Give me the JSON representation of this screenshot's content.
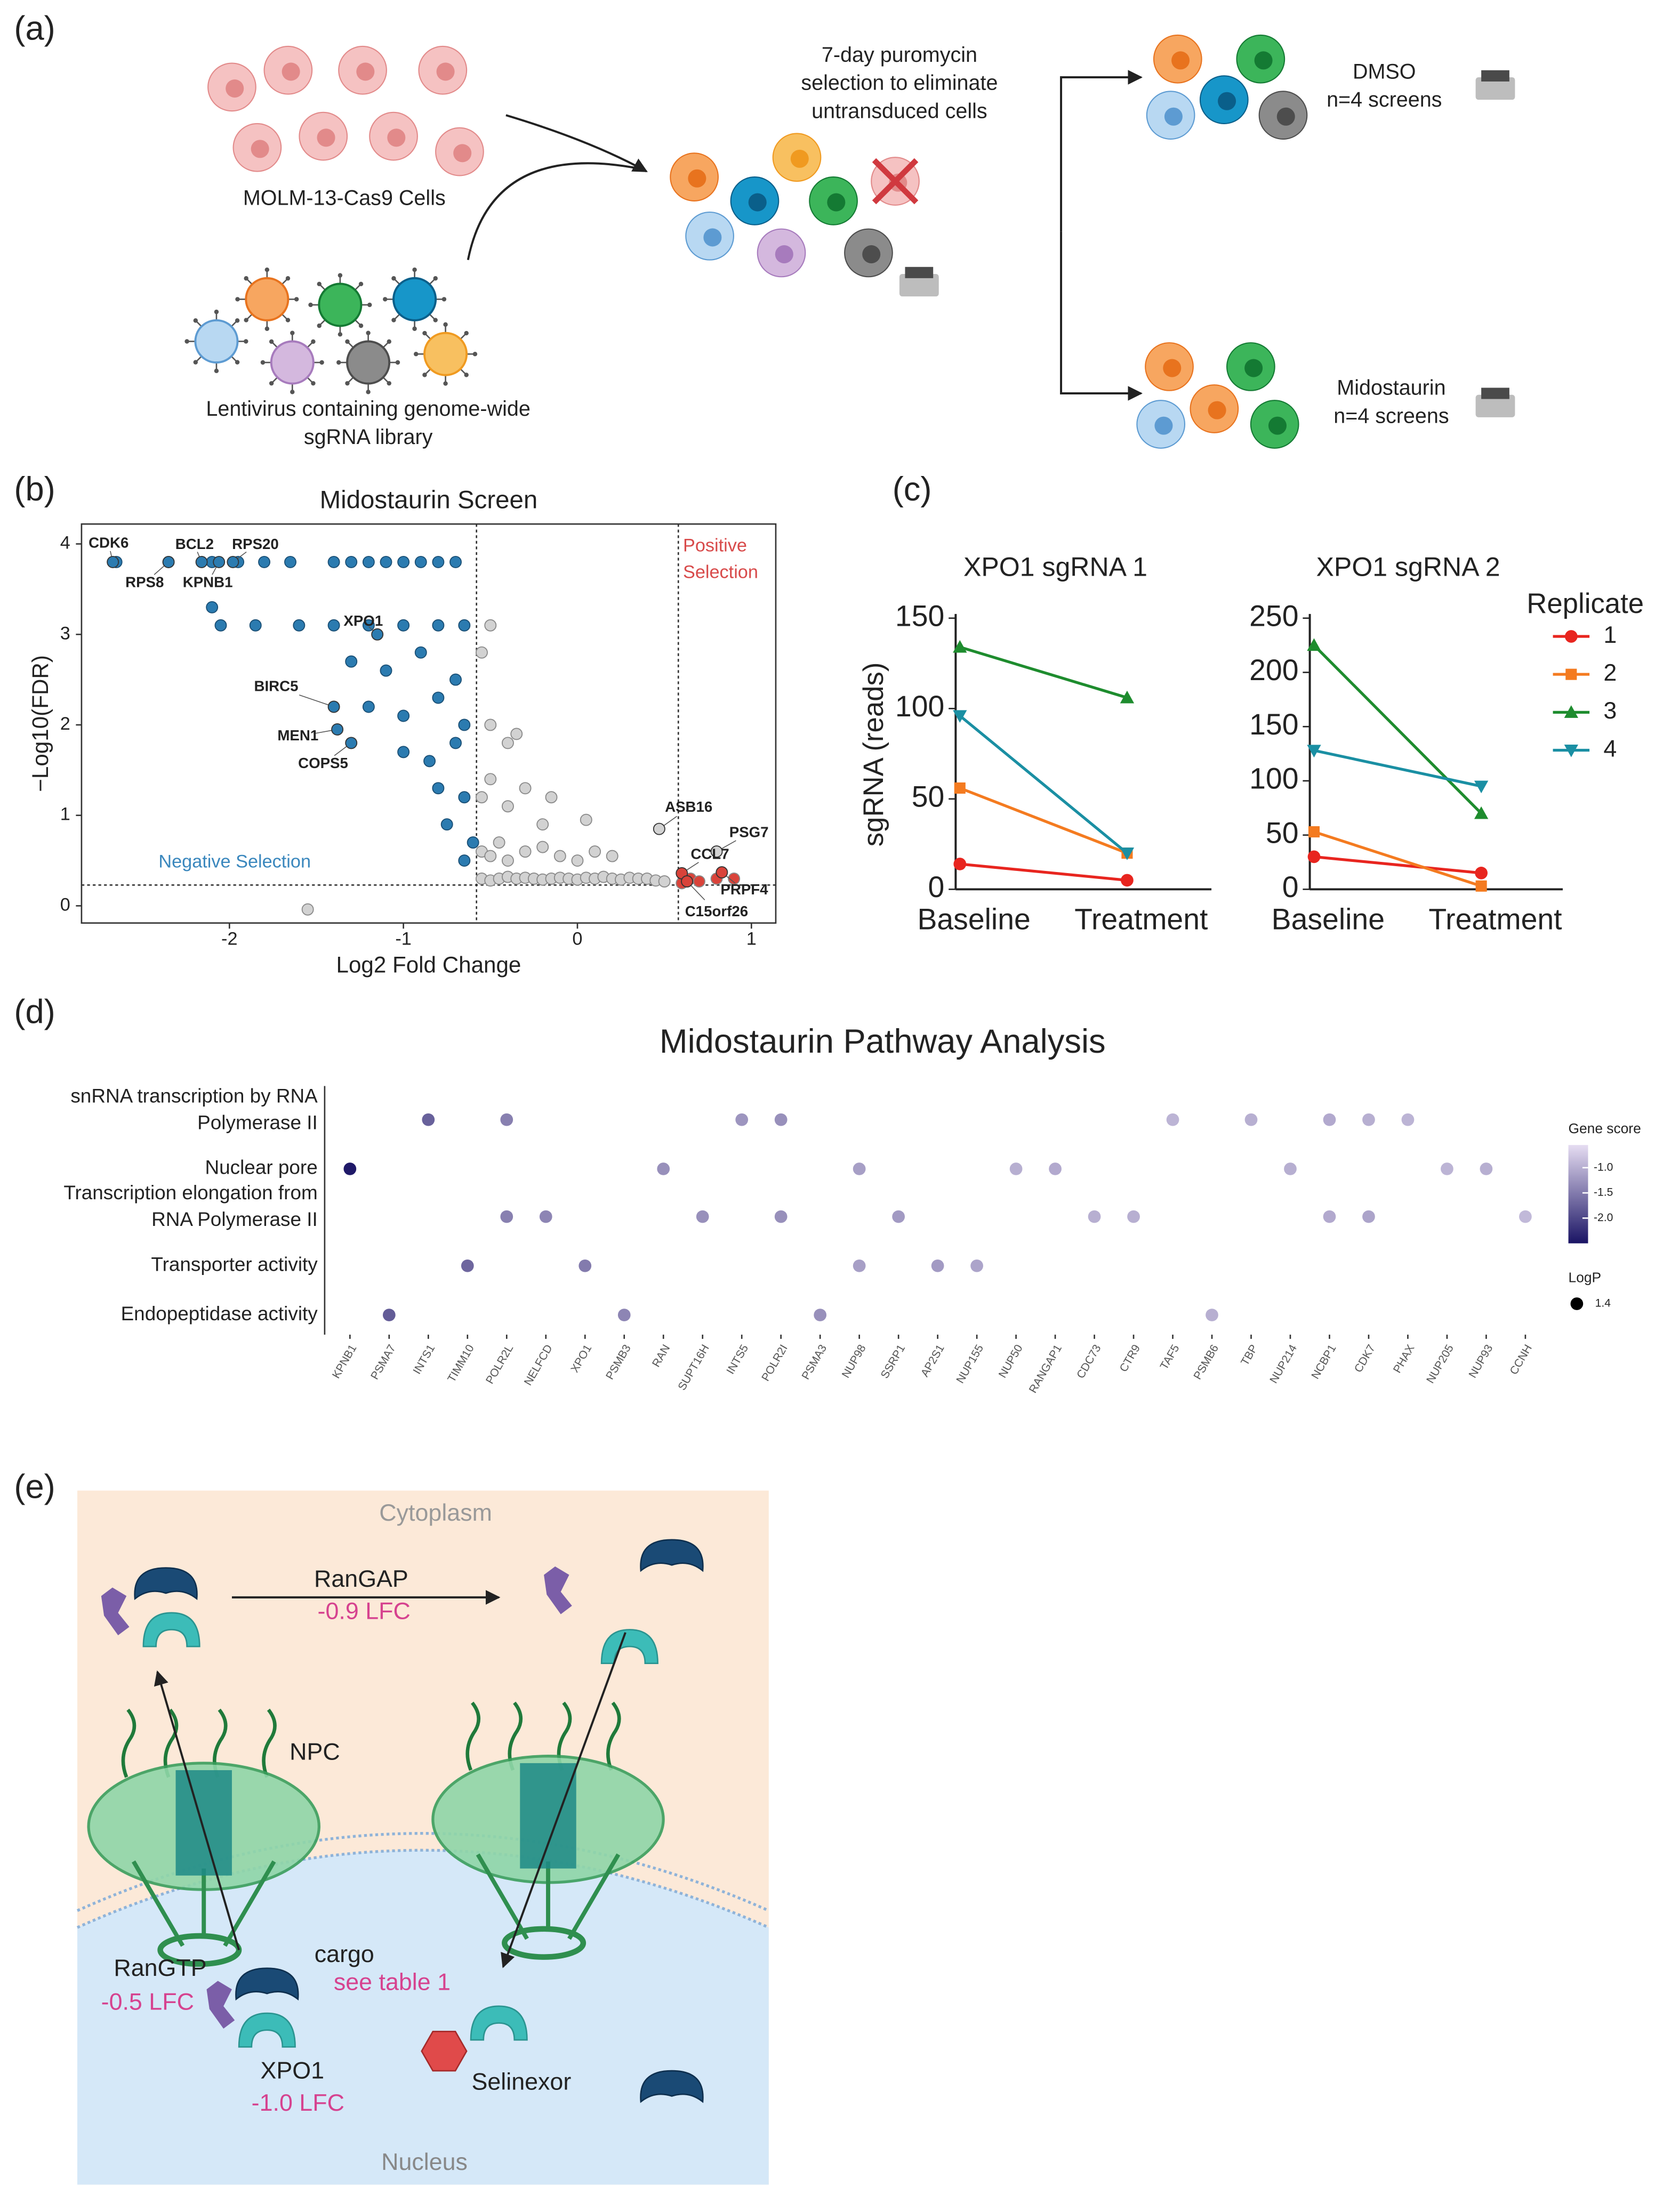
{
  "panel_labels": [
    "(a)",
    "(b)",
    "(c)",
    "(d)",
    "(e)"
  ],
  "schematic_a": {
    "cells_label": "MOLM-13-Cas9 Cells",
    "virus_label": [
      "Lentivirus containing genome-wide",
      "sgRNA library"
    ],
    "selection_label": [
      "7-day puromycin",
      "selection to eliminate",
      "untransduced cells"
    ],
    "dmso": [
      "DMSO",
      "n=4 screens"
    ],
    "midostaurin": [
      "Midostaurin",
      "n=4 screens"
    ]
  },
  "chart_data": [
    {
      "type": "scatter",
      "title": "Midostaurin Screen",
      "xlabel": "Log2 Fold Change",
      "ylabel": "−Log10(FDR)",
      "xlim": [
        -2.85,
        1.14
      ],
      "xticks": [
        -2,
        -1,
        0,
        1
      ],
      "ylim": [
        -0.19,
        4.22
      ],
      "yticks": [
        0,
        1,
        2,
        3,
        4
      ],
      "thresholds": {
        "x": [
          -0.58,
          0.58
        ],
        "y": 0.23
      },
      "series": [
        {
          "color": "#d2d2d2",
          "x": [
            -0.55,
            -0.5,
            -0.45,
            -0.4,
            -0.35,
            -0.3,
            -0.25,
            -0.2,
            -0.15,
            -0.1,
            -0.05,
            0,
            0.05,
            0.1,
            0.15,
            0.2,
            0.25,
            0.3,
            0.35,
            0.4,
            0.45,
            0.5,
            -0.55,
            -0.5,
            -0.45,
            -0.4,
            -0.3,
            -0.2,
            -0.1,
            0,
            0.1,
            -0.55,
            -0.5,
            -0.4,
            -0.3,
            -0.2,
            -0.5,
            -0.4,
            -0.55,
            -1.55,
            -0.5,
            -0.35,
            -0.15,
            0.05,
            0.2
          ],
          "values": [
            0.3,
            0.28,
            0.3,
            0.32,
            0.3,
            0.31,
            0.3,
            0.29,
            0.3,
            0.31,
            0.3,
            0.29,
            0.31,
            0.3,
            0.32,
            0.3,
            0.29,
            0.31,
            0.3,
            0.3,
            0.28,
            0.27,
            0.6,
            0.55,
            0.7,
            0.5,
            0.6,
            0.65,
            0.55,
            0.5,
            0.6,
            1.2,
            1.4,
            1.1,
            1.3,
            0.9,
            2.0,
            1.8,
            2.8,
            -0.04,
            3.1,
            1.9,
            1.2,
            0.95,
            0.55
          ]
        },
        {
          "color": "#2b7bb0",
          "x": [
            -2.65,
            -2.35,
            -2.1,
            -1.95,
            -1.8,
            -1.65,
            -1.4,
            -1.3,
            -1.2,
            -1.1,
            -1.0,
            -0.9,
            -0.8,
            -0.7,
            -2.05,
            -1.85,
            -1.6,
            -1.4,
            -1.2,
            -1.0,
            -0.8,
            -0.65,
            -1.3,
            -1.1,
            -0.9,
            -0.7,
            -1.2,
            -1.0,
            -0.8,
            -0.65,
            -1.0,
            -0.85,
            -0.7,
            -0.8,
            -0.65,
            -0.75,
            -0.6,
            -0.65,
            -2.1
          ],
          "values": [
            3.8,
            3.8,
            3.8,
            3.8,
            3.8,
            3.8,
            3.8,
            3.8,
            3.8,
            3.8,
            3.8,
            3.8,
            3.8,
            3.8,
            3.1,
            3.1,
            3.1,
            3.1,
            3.1,
            3.1,
            3.1,
            3.1,
            2.7,
            2.6,
            2.8,
            2.5,
            2.2,
            2.1,
            2.3,
            2.0,
            1.7,
            1.6,
            1.8,
            1.3,
            1.2,
            0.9,
            0.7,
            0.5,
            3.3
          ]
        },
        {
          "color": "#d9433a",
          "x": [
            0.6,
            0.65,
            0.7,
            0.8,
            0.9
          ],
          "values": [
            0.25,
            0.3,
            0.27,
            0.3,
            0.3
          ]
        }
      ],
      "annotations": [
        {
          "text": "CDK6",
          "x": -2.67,
          "y": 3.8,
          "color": "#2b7bb0"
        },
        {
          "text": "BCL2",
          "x": -2.16,
          "y": 3.8,
          "color": "#2b7bb0"
        },
        {
          "text": "RPS20",
          "x": -1.98,
          "y": 3.8,
          "color": "#2b7bb0"
        },
        {
          "text": "RPS8",
          "x": -2.35,
          "y": 3.8,
          "color": "#2b7bb0"
        },
        {
          "text": "KPNB1",
          "x": -2.06,
          "y": 3.8,
          "color": "#2b7bb0"
        },
        {
          "text": "XPO1",
          "x": -1.15,
          "y": 3.0,
          "color": "#2b7bb0"
        },
        {
          "text": "BIRC5",
          "x": -1.4,
          "y": 2.2,
          "color": "#2b7bb0"
        },
        {
          "text": "MEN1",
          "x": -1.38,
          "y": 1.95,
          "color": "#2b7bb0"
        },
        {
          "text": "COPS5",
          "x": -1.3,
          "y": 1.8,
          "color": "#2b7bb0"
        },
        {
          "text": "ASB16",
          "x": 0.47,
          "y": 0.85,
          "color": "#d2d2d2"
        },
        {
          "text": "PSG7",
          "x": 0.8,
          "y": 0.6,
          "color": "#d2d2d2"
        },
        {
          "text": "CCL7",
          "x": 0.6,
          "y": 0.36,
          "color": "#d9433a"
        },
        {
          "text": "PRPF4",
          "x": 0.83,
          "y": 0.37,
          "color": "#d9433a"
        },
        {
          "text": "C15orf26",
          "x": 0.63,
          "y": 0.27,
          "color": "#d9433a"
        }
      ],
      "negative_label": "Negative Selection",
      "positive_label": [
        "Positive",
        "Selection"
      ]
    },
    {
      "type": "line",
      "title": "XPO1 sgRNA 1",
      "ylabel": "sgRNA (reads)",
      "categories": [
        "Baseline",
        "Treatment"
      ],
      "ylim": [
        0,
        150
      ],
      "yticks": [
        0,
        50,
        100,
        150
      ],
      "series": [
        {
          "color": "#e8251f",
          "marker": "circle",
          "values": [
            14,
            5
          ]
        },
        {
          "color": "#f47b20",
          "marker": "square",
          "values": [
            56,
            20
          ]
        },
        {
          "color": "#1e8c2e",
          "marker": "triangle-up",
          "values": [
            134,
            106
          ]
        },
        {
          "color": "#1a8fa3",
          "marker": "triangle-down",
          "values": [
            96,
            20
          ]
        }
      ]
    },
    {
      "type": "line",
      "title": "XPO1 sgRNA 2",
      "categories": [
        "Baseline",
        "Treatment"
      ],
      "ylim": [
        0,
        250
      ],
      "yticks": [
        0,
        50,
        100,
        150,
        200,
        250
      ],
      "legend_title": "Replicate",
      "series": [
        {
          "name": "1",
          "color": "#e8251f",
          "marker": "circle",
          "values": [
            30,
            15
          ]
        },
        {
          "name": "2",
          "color": "#f47b20",
          "marker": "square",
          "values": [
            53,
            3
          ]
        },
        {
          "name": "3",
          "color": "#1e8c2e",
          "marker": "triangle-up",
          "values": [
            225,
            70
          ]
        },
        {
          "name": "4",
          "color": "#1a8fa3",
          "marker": "triangle-down",
          "values": [
            128,
            95
          ]
        }
      ]
    },
    {
      "type": "dot",
      "title": "Midostaurin Pathway Analysis",
      "categories": [
        "KPNB1",
        "PSMA7",
        "INTS1",
        "TIMM10",
        "POLR2L",
        "NELFCD",
        "XPO1",
        "PSMB3",
        "RAN",
        "SUPT16H",
        "INTS5",
        "POLR2I",
        "PSMA3",
        "NUP98",
        "SSRP1",
        "AP2S1",
        "NUP155",
        "NUP50",
        "RANGAP1",
        "CDC73",
        "CTR9",
        "TAF5",
        "PSMB6",
        "TBP",
        "NUP214",
        "NCBP1",
        "CDK7",
        "PHAX",
        "NUP205",
        "NUP93",
        "CCNH"
      ],
      "rows": [
        {
          "label": [
            "snRNA transcription by RNA",
            "Polymerase II"
          ],
          "genes": [
            "INTS1",
            "POLR2L",
            "INTS5",
            "POLR2I",
            "TAF5",
            "TBP",
            "NCBP1",
            "CDK7",
            "PHAX"
          ],
          "values": [
            -1.75,
            -1.45,
            -1.25,
            -1.3,
            -0.95,
            -1.0,
            -1.05,
            -1.0,
            -0.95
          ]
        },
        {
          "label": [
            "Nuclear pore"
          ],
          "genes": [
            "KPNB1",
            "RAN",
            "NUP98",
            "NUP50",
            "RANGAP1",
            "NUP214",
            "NUP205",
            "NUP93"
          ],
          "values": [
            -2.45,
            -1.3,
            -1.15,
            -1.0,
            -1.05,
            -1.0,
            -0.95,
            -1.0
          ]
        },
        {
          "label": [
            "Transcription elongation from",
            "RNA Polymerase II"
          ],
          "genes": [
            "POLR2L",
            "NELFCD",
            "SUPT16H",
            "POLR2I",
            "SSRP1",
            "CDC73",
            "CTR9",
            "NCBP1",
            "CDK7",
            "CCNH"
          ],
          "values": [
            -1.45,
            -1.4,
            -1.3,
            -1.3,
            -1.2,
            -1.0,
            -1.0,
            -1.05,
            -1.1,
            -0.9
          ]
        },
        {
          "label": [
            "Transporter activity"
          ],
          "genes": [
            "TIMM10",
            "XPO1",
            "NUP98",
            "AP2S1",
            "NUP155"
          ],
          "values": [
            -1.7,
            -1.5,
            -1.15,
            -1.2,
            -1.1
          ]
        },
        {
          "label": [
            "Endopeptidase activity"
          ],
          "genes": [
            "PSMA7",
            "PSMB3",
            "PSMA3",
            "PSMB6"
          ],
          "values": [
            -1.8,
            -1.4,
            -1.3,
            -1.0
          ]
        }
      ],
      "colorbar": {
        "title": "Gene score",
        "clim": [
          -2.5,
          -0.55
        ],
        "colors": [
          "#1a1464",
          "#e6ddf2"
        ],
        "ticks": [
          {
            "value": -1,
            "label": "-1.0"
          },
          -1.5,
          {
            "value": -2,
            "label": "-2.0"
          }
        ]
      },
      "size_legend": {
        "title": "LogP",
        "values": [
          1.4
        ]
      }
    }
  ],
  "schematic_e": {
    "cytoplasm": "Cytoplasm",
    "nucleus": "Nucleus",
    "rangap": "RanGAP",
    "rangap_lfc": "-0.9 LFC",
    "npc": "NPC",
    "cargo": "cargo",
    "cargo_note": "see table 1",
    "rangtp": "RanGTP",
    "rangtp_lfc": "-0.5 LFC",
    "xpo1": "XPO1",
    "xpo1_lfc": "-1.0 LFC",
    "drug": "Selinexor"
  }
}
